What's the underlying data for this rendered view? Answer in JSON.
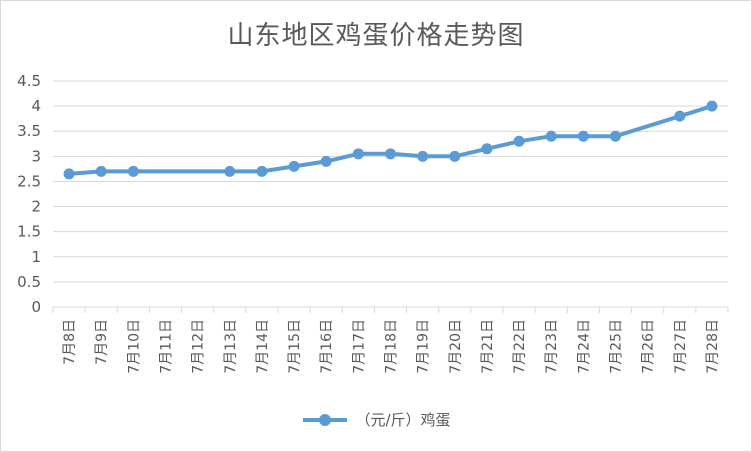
{
  "chart_data": {
    "type": "line",
    "title": "山东地区鸡蛋价格走势图",
    "xlabel": "",
    "ylabel": "",
    "ylim": [
      0,
      4.5
    ],
    "ytick_step": 0.5,
    "y_ticks": [
      "0",
      "0.5",
      "1",
      "1.5",
      "2",
      "2.5",
      "3",
      "3.5",
      "4",
      "4.5"
    ],
    "grid": true,
    "legend_position": "bottom",
    "categories": [
      "7月8日",
      "7月9日",
      "7月10日",
      "7月11日",
      "7月12日",
      "7月13日",
      "7月14日",
      "7月15日",
      "7月16日",
      "7月17日",
      "7月18日",
      "7月19日",
      "7月20日",
      "7月21日",
      "7月22日",
      "7月23日",
      "7月24日",
      "7月25日",
      "7月26日",
      "7月27日",
      "7月28日"
    ],
    "series": [
      {
        "name": "（元/斤）鸡蛋",
        "color": "#5b9bd5",
        "values": [
          2.65,
          2.7,
          2.7,
          null,
          null,
          2.7,
          2.7,
          2.8,
          2.9,
          3.05,
          3.05,
          3.0,
          3.0,
          3.15,
          3.3,
          3.4,
          3.4,
          3.4,
          null,
          3.8,
          4.0
        ]
      }
    ]
  }
}
